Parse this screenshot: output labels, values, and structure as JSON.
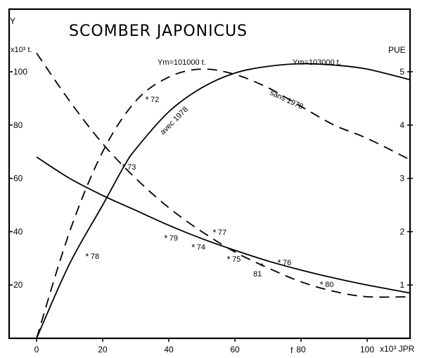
{
  "chart_data": {
    "type": "line",
    "title": "SCOMBER JAPONICUS",
    "xlabel": "f",
    "xunit": "x10^3 JPR",
    "ylabel": "Y",
    "yunit": "x10^3 t.",
    "y2label": "PUE",
    "xlim": [
      -8,
      113
    ],
    "ylim": [
      0,
      122
    ],
    "y2lim": [
      0,
      6.1
    ],
    "x_ticks": [
      0,
      20,
      40,
      60,
      80,
      100
    ],
    "y_ticks": [
      20,
      40,
      60,
      80,
      100
    ],
    "y2_ticks": [
      1,
      2,
      3,
      4,
      5
    ],
    "grid": false,
    "y2_scale_note": "1 PUE unit = 20 Y units on the plot",
    "series": [
      {
        "name": "Y avec 1978",
        "axis": "left",
        "style": "solid",
        "label": "avec 1978",
        "annotation": "Ym=103000 t.",
        "x": [
          0,
          10,
          20,
          26.4,
          30,
          40,
          50,
          60,
          70,
          80,
          90,
          100,
          113
        ],
        "y": [
          0,
          28,
          50,
          64.4,
          71,
          85,
          94,
          99.5,
          102,
          103,
          102.5,
          101,
          97
        ]
      },
      {
        "name": "Y sans 1978",
        "axis": "left",
        "style": "dashed",
        "label": "sans 1978",
        "annotation": "Ym=101000 t.",
        "x": [
          0,
          10,
          20,
          30,
          40,
          50,
          60,
          70,
          80,
          90,
          100,
          113
        ],
        "y": [
          0,
          40,
          70,
          89,
          98,
          101,
          99,
          94,
          87,
          80,
          75,
          67
        ]
      },
      {
        "name": "PUE avec 1978",
        "axis": "right",
        "style": "solid",
        "x": [
          0,
          10,
          20,
          30,
          40,
          50,
          60,
          70,
          80,
          90,
          100,
          113
        ],
        "y": [
          3.4,
          3.0,
          2.68,
          2.4,
          2.12,
          1.87,
          1.65,
          1.45,
          1.28,
          1.13,
          1.0,
          0.85
        ]
      },
      {
        "name": "PUE sans 1978",
        "axis": "right",
        "style": "dashed",
        "x": [
          0,
          10,
          20,
          30,
          40,
          50,
          60,
          70,
          80,
          90,
          100,
          113
        ],
        "y": [
          5.35,
          4.45,
          3.65,
          3.0,
          2.45,
          2.0,
          1.62,
          1.32,
          1.06,
          0.88,
          0.78,
          0.78
        ]
      }
    ],
    "points": [
      {
        "label": "72",
        "x": 33.4,
        "y": 89.7
      },
      {
        "label": "73",
        "x": 26.4,
        "y": 64.4
      },
      {
        "label": "77",
        "x": 53.8,
        "y": 39.8
      },
      {
        "label": "79",
        "x": 39.1,
        "y": 37.7
      },
      {
        "label": "74",
        "x": 47.4,
        "y": 34.3
      },
      {
        "label": "75",
        "x": 58.1,
        "y": 29.8
      },
      {
        "label": "81",
        "x": 68.1,
        "y": 27.2
      },
      {
        "label": "76",
        "x": 73.4,
        "y": 28.5
      },
      {
        "label": "80",
        "x": 86.2,
        "y": 20.3
      },
      {
        "label": "78",
        "x": 15.3,
        "y": 30.9
      }
    ],
    "annotations": [
      {
        "text": "Ym=101000 t.",
        "x": 52,
        "y": 107
      },
      {
        "text": "Ym=103000 t.",
        "x": 93,
        "y": 107
      },
      {
        "text": "avec 1978",
        "x": 40,
        "y": 82
      },
      {
        "text": "sans 1978",
        "x": 80,
        "y": 88
      }
    ]
  },
  "labels": {
    "title": "SCOMBER JAPONICUS",
    "y_axis": "Y",
    "y_unit": "x10³ t.",
    "y2_axis": "PUE",
    "x_axis": "f",
    "x_unit": "x10³ JPR",
    "ym_sans": "Ym=101000 t.",
    "ym_avec": "Ym=103000 t.",
    "avec": "avec 1978",
    "sans": "sans 1978"
  }
}
